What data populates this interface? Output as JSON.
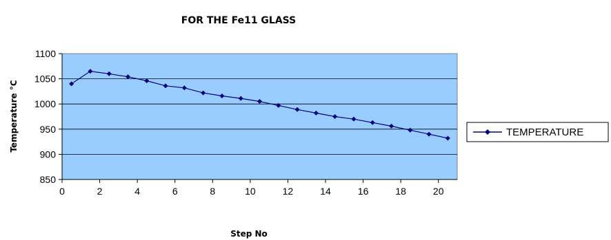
{
  "chart_data": {
    "type": "line",
    "title": "FOR THE Fe11 GLASS",
    "xlabel": "Step No",
    "ylabel": "Temperature °C",
    "xlim": [
      0,
      21
    ],
    "ylim": [
      850,
      1100
    ],
    "x_ticks": [
      "0",
      "2",
      "4",
      "6",
      "8",
      "10",
      "12",
      "14",
      "16",
      "18",
      "20"
    ],
    "y_ticks": [
      "850",
      "900",
      "950",
      "1000",
      "1050",
      "1100"
    ],
    "grid": "horizontal",
    "legend": "right",
    "plot_background": "#99ccff",
    "line_color": "#000080",
    "series": [
      {
        "name": "TEMPERATURE",
        "x": [
          0.5,
          1.5,
          2.5,
          3.5,
          4.5,
          5.5,
          6.5,
          7.5,
          8.5,
          9.5,
          10.5,
          11.5,
          12.5,
          13.5,
          14.5,
          15.5,
          16.5,
          17.5,
          18.5,
          19.5,
          20.5
        ],
        "values": [
          1040,
          1065,
          1060,
          1054,
          1046,
          1036,
          1032,
          1022,
          1016,
          1011,
          1005,
          997,
          989,
          982,
          975,
          970,
          963,
          956,
          948,
          940,
          932
        ]
      }
    ]
  }
}
